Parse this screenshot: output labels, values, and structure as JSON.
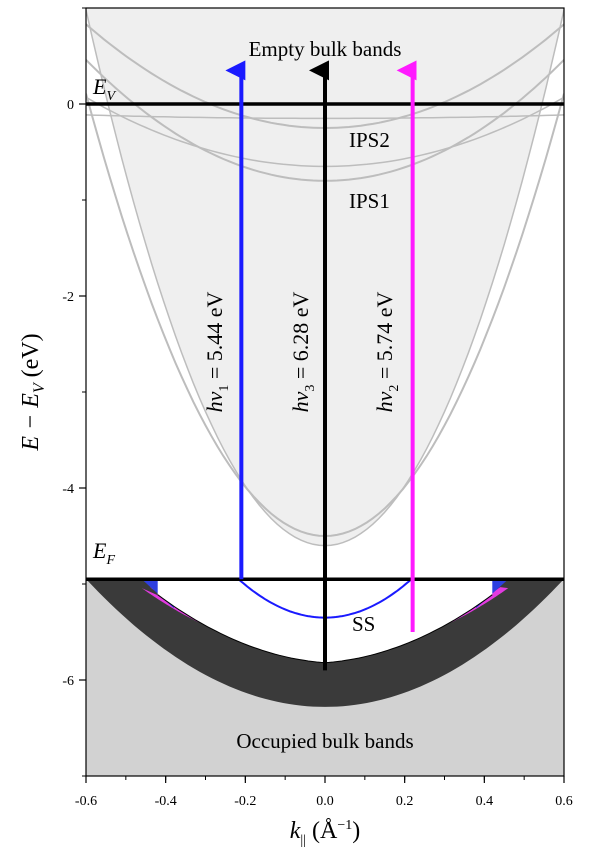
{
  "chart_data": {
    "type": "diagram",
    "xlabel": "k",
    "xlabel_sub": "||",
    "xlabel_unit_open": " (Å",
    "xlabel_unit_exp": "−1",
    "xlabel_unit_close": ")",
    "ylabel": "E − E",
    "ylabel_sub": "V",
    "ylabel_unit": " (eV)",
    "xlim": [
      -0.6,
      0.6
    ],
    "ylim": [
      -7,
      1
    ],
    "x_ticks": [
      -0.6,
      -0.4,
      -0.2,
      0.0,
      0.2,
      0.4,
      0.6
    ],
    "x_tick_labels": [
      "-0.6",
      "-0.4",
      "-0.2",
      "0.0",
      "0.2",
      "0.4",
      "0.6"
    ],
    "y_ticks": [
      0,
      -2,
      -4,
      -6
    ],
    "y_tick_labels": [
      "0",
      "-2",
      "-4",
      "-6"
    ],
    "vacuum_level": {
      "energy": 0,
      "label": "E",
      "sub": "V"
    },
    "fermi_level": {
      "energy": -4.95,
      "label": "E",
      "sub": "F"
    },
    "regions": {
      "empty_bulk_label": "Empty bulk bands",
      "occupied_bulk_label": "Occupied bulk bands"
    },
    "image_states": [
      {
        "label": "IPS2",
        "min_energy": -0.25
      },
      {
        "label": "IPS1",
        "min_energy": -0.8
      }
    ],
    "surface_state": {
      "label": "SS",
      "min_energy": -5.35
    },
    "transitions": [
      {
        "k": -0.21,
        "from": -4.95,
        "to": 0.35,
        "color": "#1a1aff",
        "label_pre": "hν",
        "label_sub": "1",
        "label_post": " = 5.44 eV"
      },
      {
        "k": 0.0,
        "from": -5.9,
        "to": 0.35,
        "color": "#000000",
        "label_pre": "hν",
        "label_sub": "3",
        "label_post": " = 6.28 eV"
      },
      {
        "k": 0.22,
        "from": -5.5,
        "to": 0.35,
        "color": "#ff1aff",
        "label_pre": "hν",
        "label_sub": "2",
        "label_post": " = 5.74 eV"
      }
    ],
    "colors": {
      "empty_bulk": "#efefef",
      "occupied_bulk": "#d2d2d2",
      "band_edge": "#3a3a3a",
      "blue_region": "#2e3fe0",
      "magenta_region": "#e23ae0",
      "curve_gray": "#bdbdbd"
    }
  }
}
